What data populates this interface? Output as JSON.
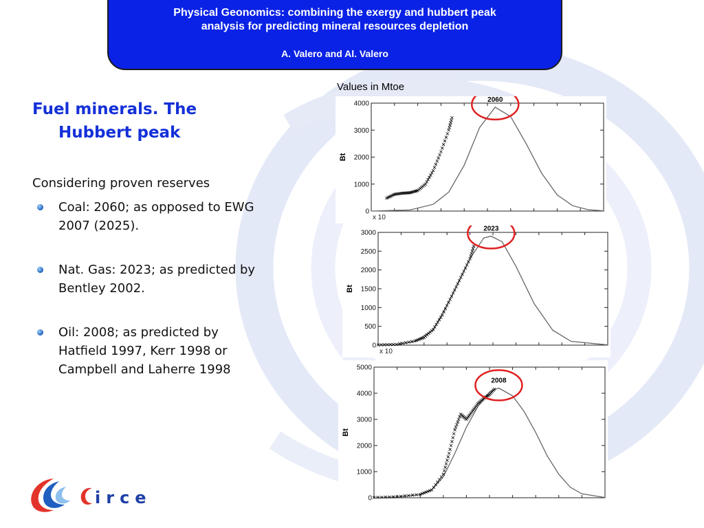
{
  "header": {
    "title_line1": "Physical Geonomics: combining the exergy and hubbert peak",
    "title_line2": "analysis for predicting mineral resources depletion",
    "authors": "A. Valero and Al. Valero"
  },
  "units_note": "Values in Mtoe",
  "section": {
    "heading_line1": "Fuel minerals. The",
    "heading_line2": "Hubbert peak",
    "intro": "Considering proven reserves",
    "bullets": [
      {
        "line1": "Coal: 2060; as opposed to EWG",
        "line2": "2007 (2025).",
        "line3": ""
      },
      {
        "line1": "Nat. Gas: 2023; as predicted by",
        "line2": "Bentley 2002.",
        "line3": ""
      },
      {
        "line1": "Oil: 2008; as predicted by",
        "line2": "Hatfield 1997, Kerr 1998 or",
        "line3": "Campbell and Laherre 1998"
      }
    ]
  },
  "logo": {
    "text": "irce"
  },
  "chart_data": [
    {
      "type": "line",
      "title": "",
      "ylabel": "Bt",
      "peak_label": "2060",
      "peak_year": 2060,
      "x_multiplier_label": "x 10",
      "ylim": [
        0,
        4000
      ],
      "yticks": [
        "0",
        "1000",
        "2000",
        "3000",
        "4000"
      ],
      "xlim": [
        1900,
        2200
      ],
      "series": [
        {
          "x": [
            1900,
            1950,
            1980,
            2000,
            2020,
            2040,
            2060,
            2080,
            2100,
            2120,
            2140,
            2160,
            2180,
            2200
          ],
          "values": [
            0,
            40,
            250,
            700,
            1700,
            3100,
            3850,
            3500,
            2500,
            1400,
            600,
            200,
            50,
            10
          ]
        },
        {
          "x": [
            1920,
            1930,
            1940,
            1950,
            1960,
            1970,
            1980,
            1990,
            2000,
            2005
          ],
          "values": [
            480,
            620,
            660,
            680,
            760,
            1000,
            1500,
            2200,
            3000,
            3550
          ]
        }
      ],
      "colors": {
        "curve": "#666666",
        "observed": "#000000",
        "highlight": "#e02020"
      }
    },
    {
      "type": "line",
      "title": "",
      "ylabel": "Bt",
      "peak_label": "2023",
      "peak_year": 2023,
      "x_multiplier_label": "x 10",
      "ylim": [
        0,
        3000
      ],
      "yticks": [
        "0",
        "500",
        "1000",
        "1500",
        "2000",
        "2500",
        "3000"
      ],
      "xlim": [
        1900,
        2150
      ],
      "series": [
        {
          "x": [
            1900,
            1920,
            1940,
            1960,
            1980,
            2000,
            2015,
            2023,
            2035,
            2050,
            2070,
            2090,
            2110,
            2150
          ],
          "values": [
            0,
            10,
            100,
            400,
            1300,
            2300,
            2850,
            2900,
            2750,
            2100,
            1100,
            400,
            100,
            5
          ]
        },
        {
          "x": [
            1900,
            1920,
            1940,
            1950,
            1960,
            1970,
            1980,
            1990,
            2000,
            2005
          ],
          "values": [
            5,
            20,
            110,
            200,
            420,
            800,
            1300,
            1800,
            2300,
            2700
          ]
        }
      ],
      "colors": {
        "curve": "#666666",
        "observed": "#000000",
        "highlight": "#e02020"
      }
    },
    {
      "type": "line",
      "title": "",
      "ylabel": "Bt",
      "peak_label": "2008",
      "peak_year": 2008,
      "x_multiplier_label": "",
      "ylim": [
        0,
        5000
      ],
      "yticks": [
        "0",
        "1000",
        "2000",
        "3000",
        "4000",
        "5000"
      ],
      "xlim": [
        1900,
        2100
      ],
      "series": [
        {
          "x": [
            1900,
            1920,
            1940,
            1950,
            1960,
            1970,
            1980,
            1990,
            2000,
            2008,
            2020,
            2030,
            2040,
            2050,
            2060,
            2070,
            2080,
            2100
          ],
          "values": [
            0,
            30,
            120,
            300,
            800,
            1700,
            2700,
            3500,
            4050,
            4200,
            3900,
            3300,
            2500,
            1600,
            900,
            400,
            150,
            10
          ]
        },
        {
          "x": [
            1900,
            1920,
            1940,
            1950,
            1960,
            1965,
            1970,
            1975,
            1980,
            1985,
            1990,
            1995,
            2000,
            2005
          ],
          "values": [
            10,
            40,
            130,
            300,
            900,
            1700,
            2600,
            3200,
            3000,
            3300,
            3600,
            3800,
            3950,
            4200
          ]
        }
      ],
      "colors": {
        "curve": "#666666",
        "observed": "#000000",
        "highlight": "#e02020"
      }
    }
  ]
}
